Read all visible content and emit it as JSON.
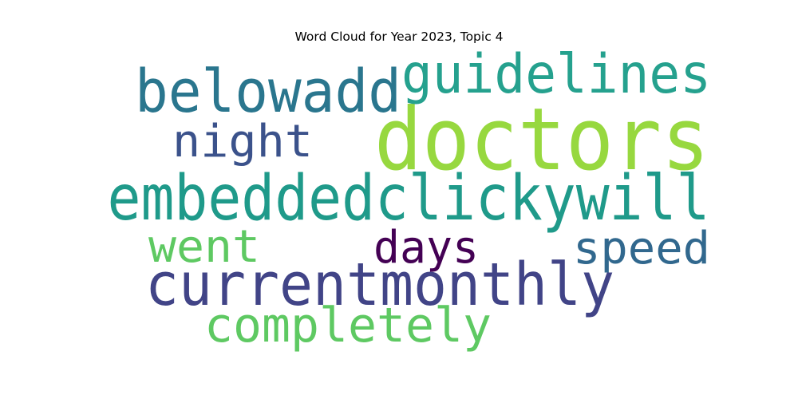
{
  "chart_data": {
    "type": "wordcloud",
    "title": "Word Cloud for Year 2023, Topic 4",
    "words": [
      {
        "text": "doctors",
        "weight": 1.0,
        "color": "#97d83f"
      },
      {
        "text": "embeddedclickywill",
        "weight": 0.72,
        "color": "#1f9a8a"
      },
      {
        "text": "currentmonthly",
        "weight": 0.68,
        "color": "#414487"
      },
      {
        "text": "belowadd",
        "weight": 0.66,
        "color": "#2a768e"
      },
      {
        "text": "guidelines",
        "weight": 0.62,
        "color": "#25a18e"
      },
      {
        "text": "completely",
        "weight": 0.56,
        "color": "#5ec962"
      },
      {
        "text": "went",
        "weight": 0.5,
        "color": "#5ec962"
      },
      {
        "text": "speed",
        "weight": 0.5,
        "color": "#31688e"
      },
      {
        "text": "days",
        "weight": 0.5,
        "color": "#440154"
      },
      {
        "text": "night",
        "weight": 0.48,
        "color": "#3b528b"
      }
    ]
  }
}
